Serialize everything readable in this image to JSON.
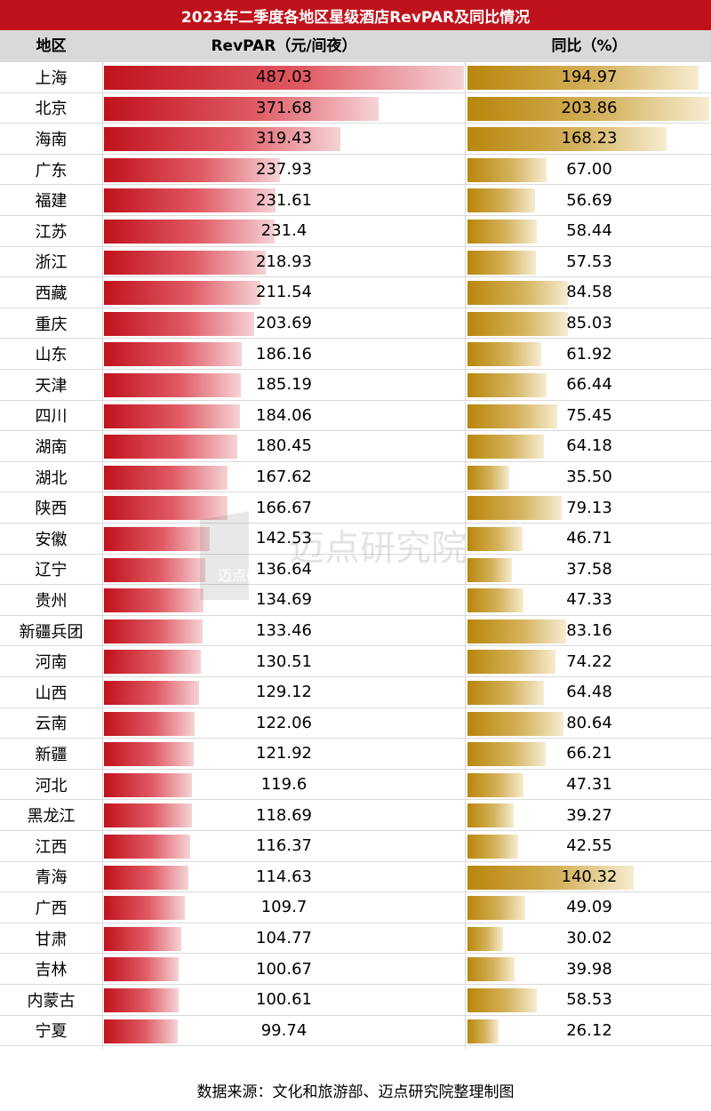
{
  "title": "2023年二季度各地区星级酒店RevPAR及同比情况",
  "headers": {
    "region": "地区",
    "revpar": "RevPAR（元/间夜）",
    "yoy": "同比（%）"
  },
  "source": "数据来源：文化和旅游部、迈点研究院整理制图",
  "watermark": {
    "text": "迈点研究院",
    "small": "迈点研究"
  },
  "colors": {
    "title_bg": "#c0121c",
    "revpar_bar": "#c0121c",
    "yoy_bar": "#b8860b",
    "header_bg": "#d9d9d9"
  },
  "chart_data": {
    "type": "table",
    "title": "2023年二季度各地区星级酒店RevPAR及同比情况",
    "columns": [
      "地区",
      "RevPAR（元/间夜）",
      "同比（%）"
    ],
    "rows": [
      {
        "region": "上海",
        "revpar": "487.03",
        "yoy": "194.97"
      },
      {
        "region": "北京",
        "revpar": "371.68",
        "yoy": "203.86"
      },
      {
        "region": "海南",
        "revpar": "319.43",
        "yoy": "168.23"
      },
      {
        "region": "广东",
        "revpar": "237.93",
        "yoy": "67.00"
      },
      {
        "region": "福建",
        "revpar": "231.61",
        "yoy": "56.69"
      },
      {
        "region": "江苏",
        "revpar": "231.4",
        "yoy": "58.44"
      },
      {
        "region": "浙江",
        "revpar": "218.93",
        "yoy": "57.53"
      },
      {
        "region": "西藏",
        "revpar": "211.54",
        "yoy": "84.58"
      },
      {
        "region": "重庆",
        "revpar": "203.69",
        "yoy": "85.03"
      },
      {
        "region": "山东",
        "revpar": "186.16",
        "yoy": "61.92"
      },
      {
        "region": "天津",
        "revpar": "185.19",
        "yoy": "66.44"
      },
      {
        "region": "四川",
        "revpar": "184.06",
        "yoy": "75.45"
      },
      {
        "region": "湖南",
        "revpar": "180.45",
        "yoy": "64.18"
      },
      {
        "region": "湖北",
        "revpar": "167.62",
        "yoy": "35.50"
      },
      {
        "region": "陕西",
        "revpar": "166.67",
        "yoy": "79.13"
      },
      {
        "region": "安徽",
        "revpar": "142.53",
        "yoy": "46.71"
      },
      {
        "region": "辽宁",
        "revpar": "136.64",
        "yoy": "37.58"
      },
      {
        "region": "贵州",
        "revpar": "134.69",
        "yoy": "47.33"
      },
      {
        "region": "新疆兵团",
        "revpar": "133.46",
        "yoy": "83.16"
      },
      {
        "region": "河南",
        "revpar": "130.51",
        "yoy": "74.22"
      },
      {
        "region": "山西",
        "revpar": "129.12",
        "yoy": "64.48"
      },
      {
        "region": "云南",
        "revpar": "122.06",
        "yoy": "80.64"
      },
      {
        "region": "新疆",
        "revpar": "121.92",
        "yoy": "66.21"
      },
      {
        "region": "河北",
        "revpar": "119.6",
        "yoy": "47.31"
      },
      {
        "region": "黑龙江",
        "revpar": "118.69",
        "yoy": "39.27"
      },
      {
        "region": "江西",
        "revpar": "116.37",
        "yoy": "42.55"
      },
      {
        "region": "青海",
        "revpar": "114.63",
        "yoy": "140.32"
      },
      {
        "region": "广西",
        "revpar": "109.7",
        "yoy": "49.09"
      },
      {
        "region": "甘肃",
        "revpar": "104.77",
        "yoy": "30.02"
      },
      {
        "region": "吉林",
        "revpar": "100.67",
        "yoy": "39.98"
      },
      {
        "region": "内蒙古",
        "revpar": "100.61",
        "yoy": "58.53"
      },
      {
        "region": "宁夏",
        "revpar": "99.74",
        "yoy": "26.12"
      }
    ]
  }
}
